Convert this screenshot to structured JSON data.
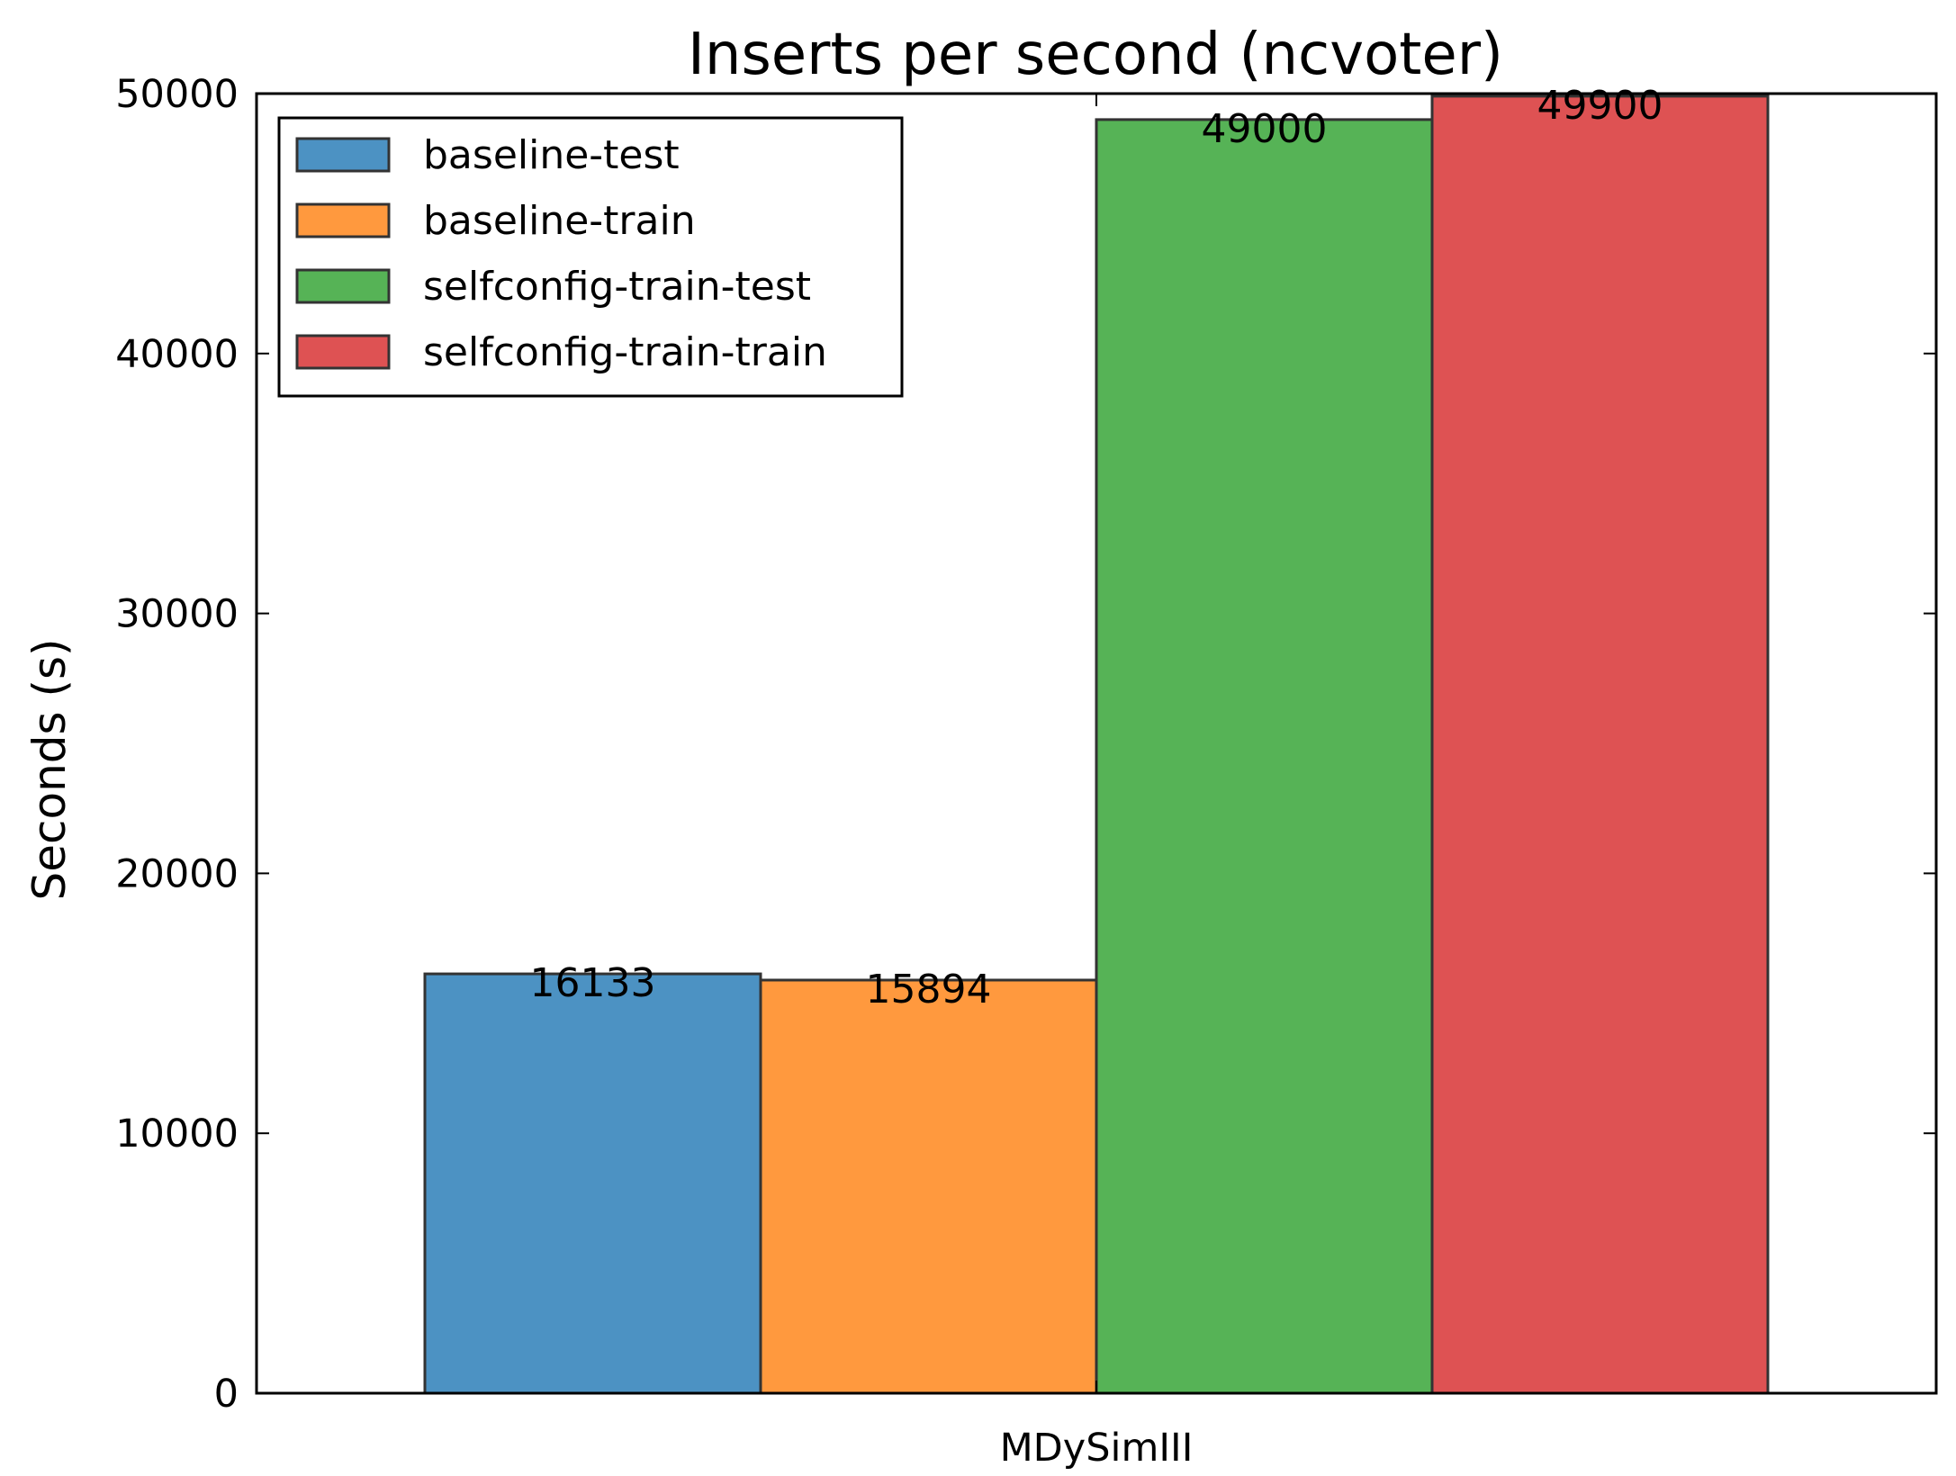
{
  "chart_data": {
    "type": "bar",
    "title": "Inserts per second (ncvoter)",
    "xlabel": "",
    "ylabel": "Seconds (s)",
    "categories": [
      "MDySimIII"
    ],
    "series": [
      {
        "name": "baseline-test",
        "values": [
          16133
        ],
        "label": "16133",
        "color": "#4c92c3"
      },
      {
        "name": "baseline-train",
        "values": [
          15894
        ],
        "label": "15894",
        "color": "#ff993e"
      },
      {
        "name": "selfconfig-train-test",
        "values": [
          49000
        ],
        "label": "49000",
        "color": "#56b356"
      },
      {
        "name": "selfconfig-train-train",
        "values": [
          49900
        ],
        "label": "49900",
        "color": "#de5253"
      }
    ],
    "ylim": [
      0,
      50000
    ],
    "yticks": [
      0,
      10000,
      20000,
      30000,
      40000,
      50000
    ],
    "ytick_labels": [
      "0",
      "10000",
      "20000",
      "30000",
      "40000",
      "50000"
    ],
    "legend_position": "top-left",
    "grid": false
  }
}
